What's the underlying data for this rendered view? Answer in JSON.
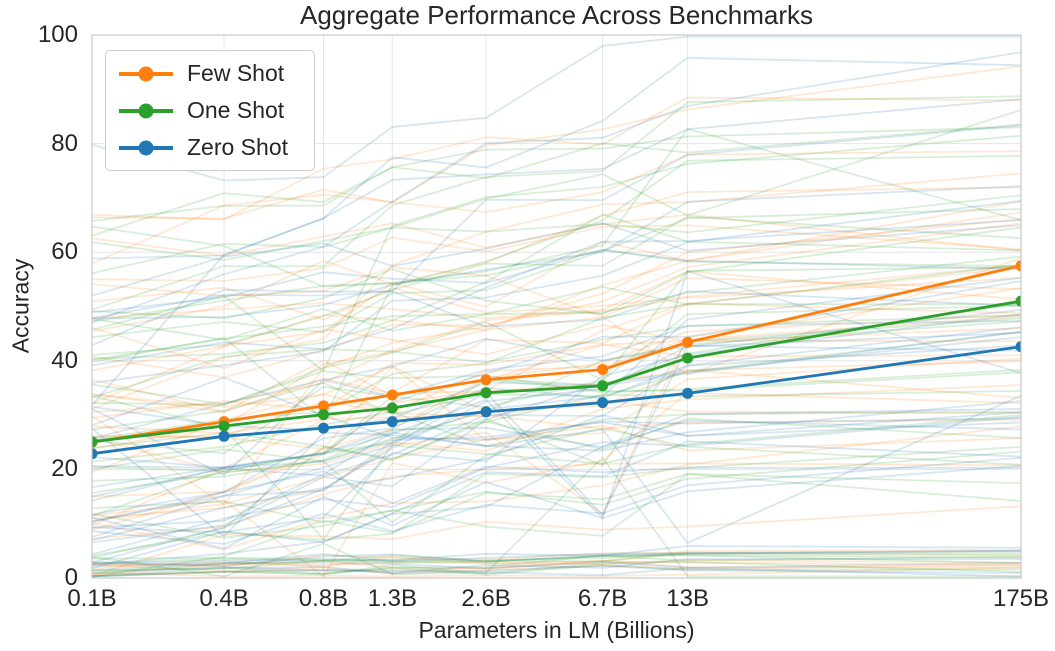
{
  "chart_data": {
    "type": "line",
    "title": "Aggregate Performance Across Benchmarks",
    "xlabel": "Parameters in LM (Billions)",
    "ylabel": "Accuracy",
    "x_axis": {
      "scale": "log",
      "tick_labels": [
        "0.1B",
        "0.4B",
        "0.8B",
        "1.3B",
        "2.6B",
        "6.7B",
        "13B",
        "175B"
      ],
      "tick_values": [
        0.125,
        0.35,
        0.76,
        1.3,
        2.7,
        6.7,
        13,
        175
      ],
      "lim": [
        0.125,
        175
      ]
    },
    "y_axis": {
      "ticks": [
        0,
        20,
        40,
        60,
        80,
        100
      ],
      "lim": [
        0,
        100
      ]
    },
    "series": [
      {
        "name": "Few Shot",
        "color": "#ff7f0e",
        "values": [
          25.0,
          28.8,
          31.7,
          33.7,
          36.5,
          38.4,
          43.4,
          57.5
        ]
      },
      {
        "name": "One Shot",
        "color": "#2ca02c",
        "values": [
          25.1,
          28.0,
          30.1,
          31.3,
          34.1,
          35.4,
          40.5,
          51.0
        ]
      },
      {
        "name": "Zero Shot",
        "color": "#1f77b4",
        "values": [
          22.9,
          26.1,
          27.6,
          28.8,
          30.6,
          32.3,
          34.0,
          42.6
        ]
      }
    ],
    "legend": {
      "position": "upper-left",
      "entries": [
        "Few Shot",
        "One Shot",
        "Zero Shot"
      ]
    },
    "background_lines": {
      "description": "faint individual benchmark trend lines, one polyline per benchmark per setting",
      "per_series_count": 42,
      "alpha": 0.18,
      "seed": 20
    },
    "grid": true,
    "style": {
      "grid_color": "#e6e6e6",
      "spine_color": "#c9c9c9",
      "text_color": "#262626",
      "background": "#ffffff"
    }
  }
}
